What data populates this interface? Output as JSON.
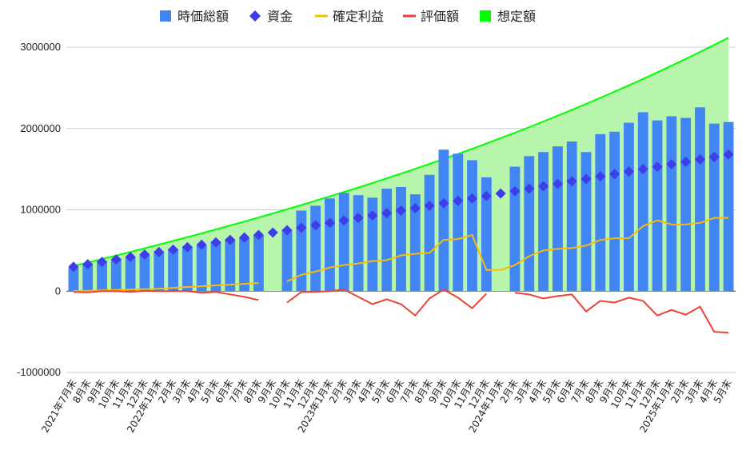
{
  "chart_data": {
    "type": "bar",
    "title": "",
    "xlabel": "",
    "ylabel": "",
    "ylim": [
      -1000000,
      3000000
    ],
    "y_ticks": [
      -1000000,
      0,
      1000000,
      2000000,
      3000000
    ],
    "y_tick_labels": [
      "-1000000",
      "0",
      "1000000",
      "2000000",
      "3000000"
    ],
    "grid": true,
    "legend_position": "top",
    "categories": [
      "2021年7月末",
      "8月末",
      "9月末",
      "10月末",
      "11月末",
      "12月末",
      "2022年1月末",
      "2月末",
      "3月末",
      "4月末",
      "5月末",
      "6月末",
      "7月末",
      "8月末",
      "9月末",
      "10月末",
      "11月末",
      "12月末",
      "2023年1月末",
      "2月末",
      "3月末",
      "4月末",
      "5月末",
      "6月末",
      "7月末",
      "8月末",
      "9月末",
      "10月末",
      "11月末",
      "12月末",
      "2024年1月末",
      "2月末",
      "3月末",
      "4月末",
      "5月末",
      "6月末",
      "7月末",
      "8月末",
      "9月末",
      "10月末",
      "11月末",
      "12月末",
      "2025年1月末",
      "2月末",
      "3月末",
      "4月末",
      "5月末"
    ],
    "series": [
      {
        "name": "時価総額",
        "kind": "bar",
        "color": "#4285f4",
        "values": [
          290000,
          340000,
          370000,
          400000,
          420000,
          440000,
          490000,
          520000,
          550000,
          560000,
          610000,
          640000,
          660000,
          690000,
          null,
          760000,
          990000,
          1050000,
          1140000,
          1210000,
          1180000,
          1150000,
          1260000,
          1280000,
          1190000,
          1430000,
          1740000,
          1690000,
          1610000,
          1400000,
          null,
          1530000,
          1660000,
          1710000,
          1780000,
          1840000,
          1710000,
          1930000,
          1960000,
          2070000,
          2200000,
          2100000,
          2150000,
          2130000,
          2260000,
          2060000,
          2080000
        ]
      },
      {
        "name": "資金",
        "kind": "diamond",
        "color": "#3d3dea",
        "values": [
          300000,
          330000,
          360000,
          390000,
          420000,
          450000,
          480000,
          510000,
          540000,
          570000,
          600000,
          630000,
          660000,
          690000,
          720000,
          750000,
          780000,
          810000,
          840000,
          870000,
          900000,
          930000,
          960000,
          990000,
          1020000,
          1050000,
          1080000,
          1110000,
          1140000,
          1170000,
          1200000,
          1230000,
          1260000,
          1290000,
          1320000,
          1350000,
          1380000,
          1410000,
          1440000,
          1470000,
          1500000,
          1530000,
          1560000,
          1590000,
          1620000,
          1650000,
          1680000
        ]
      },
      {
        "name": "確定利益",
        "kind": "line",
        "color": "#fbbc04",
        "values": [
          0,
          5000,
          10000,
          15000,
          20000,
          25000,
          30000,
          40000,
          50000,
          60000,
          70000,
          80000,
          90000,
          100000,
          null,
          120000,
          200000,
          240000,
          290000,
          320000,
          340000,
          370000,
          380000,
          440000,
          460000,
          470000,
          630000,
          640000,
          690000,
          260000,
          260000,
          320000,
          430000,
          500000,
          520000,
          530000,
          560000,
          630000,
          650000,
          650000,
          800000,
          870000,
          820000,
          820000,
          840000,
          900000,
          900000
        ]
      },
      {
        "name": "評価額",
        "kind": "line",
        "color": "#ea4335",
        "values": [
          -10000,
          -15000,
          0,
          0,
          -10000,
          5000,
          0,
          0,
          0,
          -20000,
          -10000,
          -40000,
          -70000,
          -110000,
          null,
          -140000,
          -10000,
          -10000,
          0,
          20000,
          -70000,
          -160000,
          -100000,
          -160000,
          -300000,
          -90000,
          20000,
          -80000,
          -210000,
          -30000,
          null,
          -20000,
          -40000,
          -90000,
          -60000,
          -40000,
          -250000,
          -120000,
          -140000,
          -80000,
          -120000,
          -300000,
          -230000,
          -290000,
          -190000,
          -500000,
          -510000
        ]
      },
      {
        "name": "想定額",
        "kind": "area",
        "color": "#00ff00",
        "fill": "#b7f5ad",
        "values": [
          310000,
          352000,
          395000,
          438000,
          482000,
          527000,
          572000,
          618000,
          664000,
          711000,
          759000,
          807000,
          856000,
          906000,
          956000,
          1007000,
          1059000,
          1112000,
          1165000,
          1219000,
          1274000,
          1330000,
          1387000,
          1445000,
          1504000,
          1564000,
          1625000,
          1687000,
          1750000,
          1815000,
          1881000,
          1948000,
          2016000,
          2086000,
          2157000,
          2229000,
          2302000,
          2377000,
          2453000,
          2530000,
          2609000,
          2690000,
          2772000,
          2856000,
          2941000,
          3028000,
          3116000
        ]
      }
    ]
  }
}
